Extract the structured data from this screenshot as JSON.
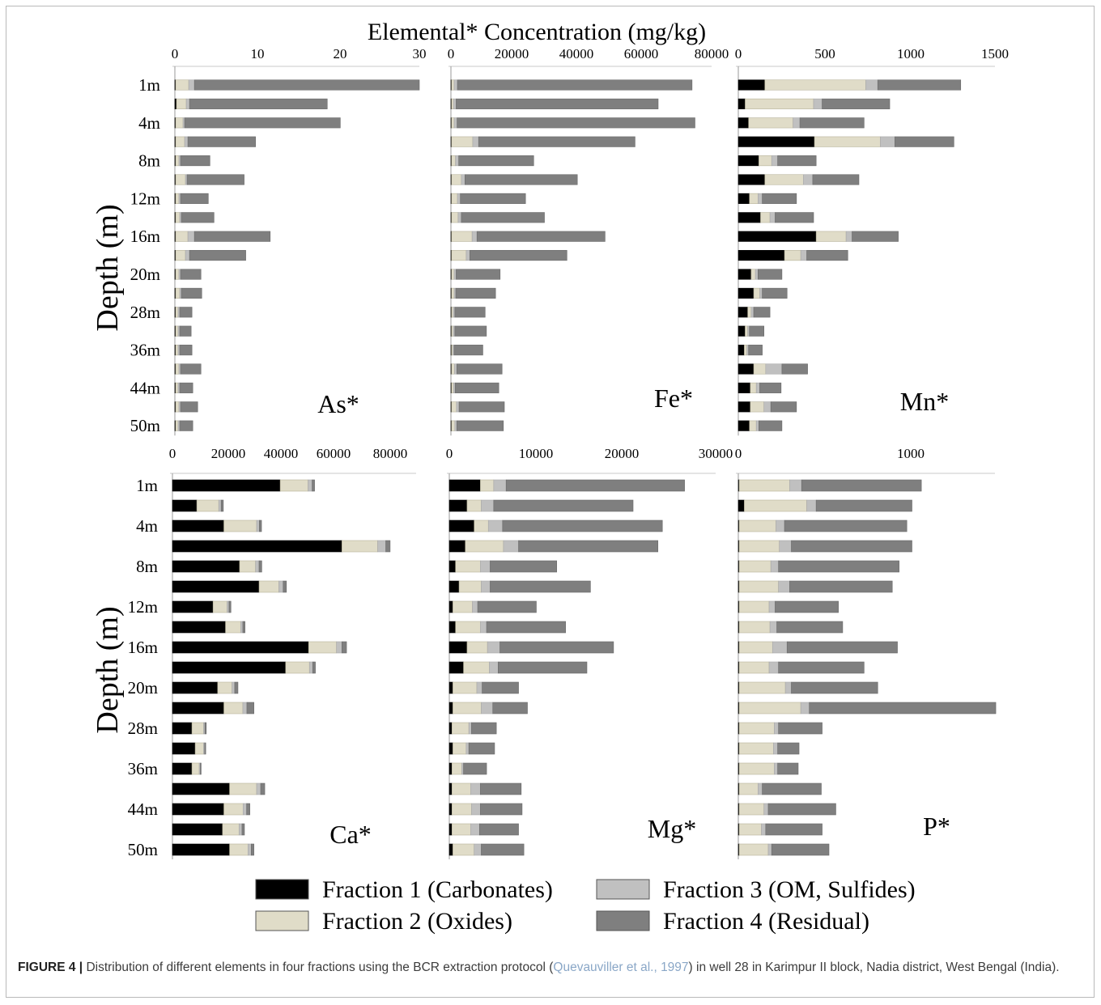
{
  "main_title": "Elemental* Concentration (mg/kg)",
  "y_axis_label": "Depth (m)",
  "depth_labels": [
    "1m",
    "",
    "4m",
    "",
    "8m",
    "",
    "12m",
    "",
    "16m",
    "",
    "20m",
    "",
    "28m",
    "",
    "36m",
    "",
    "44m",
    "",
    "50m"
  ],
  "legend": [
    {
      "label": "Fraction 1 (Carbonates)",
      "color": "#000000"
    },
    {
      "label": "Fraction 2 (Oxides)",
      "color": "#e0dcc8"
    },
    {
      "label": "Fraction 3 (OM, Sulfides)",
      "color": "#c0c0c0"
    },
    {
      "label": "Fraction 4 (Residual)",
      "color": "#7f7f7f"
    }
  ],
  "caption": {
    "figure_label": "FIGURE 4 |",
    "text_before": " Distribution of different elements in four fractions using the BCR extraction protocol (",
    "citation": "Quevauviller et al., 1997",
    "text_after": ") in well 28 in Karimpur II block, Nadia district, West Bengal (India)."
  },
  "chart_data": [
    {
      "type": "bar",
      "orientation": "horizontal",
      "stacked": true,
      "element": "As*",
      "xlim": [
        0,
        30
      ],
      "xticks": [
        "0",
        "10",
        "20",
        "30"
      ],
      "series": [
        {
          "name": "Fraction 1 (Carbonates)",
          "values": [
            0.1,
            0.2,
            0.1,
            0.1,
            0.1,
            0.1,
            0.1,
            0.1,
            0.1,
            0.1,
            0.1,
            0.1,
            0.1,
            0.1,
            0.1,
            0.1,
            0.1,
            0.1,
            0.1
          ]
        },
        {
          "name": "Fraction 2 (Oxides)",
          "values": [
            1.6,
            1.2,
            0.9,
            1.1,
            0.4,
            1.2,
            0.4,
            0.5,
            1.5,
            1.2,
            0.4,
            0.5,
            0.3,
            0.3,
            0.3,
            0.4,
            0.3,
            0.4,
            0.3
          ]
        },
        {
          "name": "Fraction 3 (OM, Sulfides)",
          "values": [
            0.7,
            0.4,
            0.2,
            0.4,
            0.2,
            0.2,
            0.2,
            0.2,
            0.8,
            0.5,
            0.2,
            0.2,
            0.2,
            0.2,
            0.2,
            0.2,
            0.2,
            0.2,
            0.2
          ]
        },
        {
          "name": "Fraction 4 (Residual)",
          "values": [
            27.6,
            16.9,
            19.1,
            8.3,
            3.6,
            7.0,
            3.4,
            4.0,
            9.3,
            6.9,
            2.5,
            2.5,
            1.5,
            1.4,
            1.5,
            2.5,
            1.6,
            2.1,
            1.6
          ]
        }
      ]
    },
    {
      "type": "bar",
      "orientation": "horizontal",
      "stacked": true,
      "element": "Fe*",
      "xlim": [
        0,
        80000
      ],
      "xticks": [
        "0",
        "20000",
        "40000",
        "60000",
        "80000"
      ],
      "series": [
        {
          "name": "Fraction 1 (Carbonates)",
          "values": [
            200,
            200,
            200,
            200,
            200,
            200,
            200,
            200,
            200,
            200,
            200,
            200,
            200,
            200,
            200,
            200,
            200,
            200,
            200
          ]
        },
        {
          "name": "Fraction 2 (Oxides)",
          "values": [
            800,
            600,
            800,
            6500,
            1200,
            3000,
            1800,
            2000,
            6300,
            4500,
            800,
            800,
            500,
            500,
            400,
            900,
            600,
            1500,
            1000
          ]
        },
        {
          "name": "Fraction 3 (OM, Sulfides)",
          "values": [
            1000,
            800,
            900,
            1800,
            1000,
            1100,
            900,
            1000,
            1500,
            1100,
            600,
            500,
            500,
            500,
            400,
            700,
            500,
            800,
            600
          ]
        },
        {
          "name": "Fraction 4 (Residual)",
          "values": [
            72000,
            62000,
            73000,
            48000,
            23000,
            34500,
            20000,
            25500,
            39300,
            29800,
            13500,
            12200,
            9300,
            9700,
            8800,
            13900,
            13400,
            13900,
            14300
          ]
        }
      ]
    },
    {
      "type": "bar",
      "orientation": "horizontal",
      "stacked": true,
      "element": "Mn*",
      "xlim": [
        0,
        1500
      ],
      "xticks": [
        "0",
        "500",
        "1000",
        "1500"
      ],
      "series": [
        {
          "name": "Fraction 1 (Carbonates)",
          "values": [
            155,
            40,
            60,
            445,
            120,
            155,
            65,
            130,
            455,
            270,
            75,
            90,
            55,
            40,
            35,
            90,
            70,
            70,
            65
          ]
        },
        {
          "name": "Fraction 2 (Oxides)",
          "values": [
            590,
            400,
            260,
            385,
            75,
            225,
            50,
            55,
            175,
            95,
            25,
            35,
            20,
            15,
            15,
            70,
            35,
            80,
            40
          ]
        },
        {
          "name": "Fraction 3 (OM, Sulfides)",
          "values": [
            70,
            50,
            40,
            85,
            35,
            55,
            25,
            30,
            35,
            35,
            15,
            15,
            15,
            10,
            10,
            95,
            20,
            40,
            15
          ]
        },
        {
          "name": "Fraction 4 (Residual)",
          "values": [
            485,
            395,
            375,
            345,
            225,
            270,
            200,
            225,
            270,
            240,
            140,
            145,
            95,
            85,
            80,
            150,
            125,
            150,
            135
          ]
        }
      ]
    },
    {
      "type": "bar",
      "orientation": "horizontal",
      "stacked": true,
      "element": "Ca*",
      "xlim": [
        0,
        90000
      ],
      "xticks": [
        "0",
        "20000",
        "40000",
        "60000",
        "80000"
      ],
      "series": [
        {
          "name": "Fraction 1 (Carbonates)",
          "values": [
            39800,
            9000,
            19000,
            62600,
            24800,
            32000,
            15000,
            19600,
            50300,
            41800,
            16700,
            19000,
            7200,
            8400,
            7200,
            21100,
            19000,
            18500,
            21100
          ]
        },
        {
          "name": "Fraction 2 (Oxides)",
          "values": [
            10300,
            8100,
            12100,
            13200,
            5900,
            7300,
            5200,
            5600,
            10300,
            8800,
            5300,
            7000,
            4300,
            3100,
            2700,
            10000,
            7100,
            6100,
            6800
          ]
        },
        {
          "name": "Fraction 3 (OM, Sulfides)",
          "values": [
            1500,
            900,
            1000,
            3000,
            1300,
            1600,
            700,
            800,
            2000,
            1200,
            1000,
            1500,
            500,
            400,
            400,
            1500,
            1300,
            1100,
            1200
          ]
        },
        {
          "name": "Fraction 4 (Residual)",
          "values": [
            900,
            800,
            800,
            1600,
            1000,
            1200,
            700,
            800,
            1700,
            1000,
            1200,
            2600,
            500,
            400,
            300,
            1500,
            1200,
            900,
            1000
          ]
        }
      ]
    },
    {
      "type": "bar",
      "orientation": "horizontal",
      "stacked": true,
      "element": "Mg*",
      "xlim": [
        0,
        30000
      ],
      "xticks": [
        "0",
        "10000",
        "20000",
        "30000"
      ],
      "series": [
        {
          "name": "Fraction 1 (Carbonates)",
          "values": [
            3500,
            2000,
            2800,
            1800,
            700,
            1100,
            400,
            700,
            2000,
            1600,
            400,
            400,
            300,
            400,
            300,
            300,
            300,
            300,
            400
          ]
        },
        {
          "name": "Fraction 2 (Oxides)",
          "values": [
            1500,
            1600,
            1600,
            4300,
            2800,
            2500,
            2200,
            2800,
            2300,
            2900,
            2700,
            3200,
            1900,
            1500,
            1100,
            2100,
            2200,
            2100,
            2400
          ]
        },
        {
          "name": "Fraction 3 (OM, Sulfides)",
          "values": [
            1400,
            1400,
            1600,
            1700,
            1100,
            1000,
            600,
            700,
            1400,
            1000,
            600,
            1300,
            300,
            300,
            200,
            1100,
            1000,
            1000,
            800
          ]
        },
        {
          "name": "Fraction 4 (Residual)",
          "values": [
            20100,
            15700,
            18000,
            15700,
            7500,
            11300,
            6600,
            8900,
            12800,
            10000,
            4100,
            3900,
            2800,
            2900,
            2600,
            4600,
            4700,
            4400,
            4800
          ]
        }
      ]
    },
    {
      "type": "bar",
      "orientation": "horizontal",
      "stacked": true,
      "element": "P*",
      "xlim": [
        0,
        1500
      ],
      "xticks": [
        "0",
        "1000"
      ],
      "series": [
        {
          "name": "Fraction 1 (Carbonates)",
          "values": [
            5,
            35,
            5,
            5,
            5,
            5,
            5,
            5,
            5,
            5,
            5,
            5,
            5,
            5,
            5,
            5,
            5,
            5,
            5
          ]
        },
        {
          "name": "Fraction 2 (Oxides)",
          "values": [
            295,
            365,
            215,
            235,
            185,
            230,
            175,
            180,
            195,
            175,
            270,
            360,
            205,
            200,
            205,
            110,
            145,
            130,
            170
          ]
        },
        {
          "name": "Fraction 3 (OM, Sulfides)",
          "values": [
            70,
            55,
            50,
            70,
            45,
            65,
            35,
            40,
            85,
            55,
            35,
            50,
            25,
            25,
            20,
            25,
            25,
            25,
            20
          ]
        },
        {
          "name": "Fraction 4 (Residual)",
          "values": [
            700,
            560,
            715,
            705,
            705,
            600,
            370,
            385,
            645,
            500,
            505,
            1090,
            255,
            125,
            120,
            345,
            395,
            330,
            335
          ]
        }
      ]
    }
  ]
}
